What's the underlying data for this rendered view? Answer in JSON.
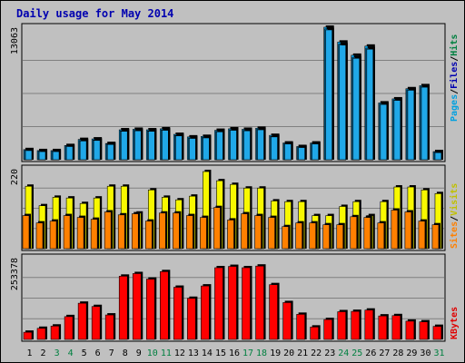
{
  "title": "Daily usage for May 2014",
  "colors": {
    "pages": "#20a8e8",
    "hits": "#00b0ff",
    "visits": "#f8f800",
    "sites": "#ff8000",
    "kbytes": "#ff0000",
    "title": "#0000b0",
    "label_pages": "#00a0e0",
    "label_files": "#0000b0",
    "label_hits": "#008040",
    "label_visits": "#c0c000",
    "label_sites": "#ff8000",
    "label_kbytes": "#e00000",
    "weekend_tick": "#008040"
  },
  "panels": {
    "hits": {
      "max_label": "13063",
      "label_parts": [
        "Pages",
        "Files",
        "Hits"
      ]
    },
    "visits": {
      "max_label": "220",
      "label_parts": [
        "Sites",
        "Visits"
      ]
    },
    "kbytes": {
      "max_label": "253378",
      "label_parts": [
        "KBytes"
      ]
    }
  },
  "chart_data": {
    "type": "bar",
    "title": "Daily usage for May 2014",
    "categories": [
      "1",
      "2",
      "3",
      "4",
      "5",
      "6",
      "7",
      "8",
      "9",
      "10",
      "11",
      "12",
      "13",
      "14",
      "15",
      "16",
      "17",
      "18",
      "19",
      "20",
      "21",
      "22",
      "23",
      "24",
      "25",
      "26",
      "27",
      "28",
      "29",
      "30",
      "31"
    ],
    "weekend_days": [
      "3",
      "4",
      "10",
      "11",
      "17",
      "18",
      "24",
      "25",
      "31"
    ],
    "series": [
      {
        "name": "Hits",
        "panel": "hits",
        "values": [
          1000,
          900,
          900,
          1400,
          2000,
          2050,
          1600,
          2950,
          3000,
          2950,
          3050,
          2500,
          2250,
          2300,
          2900,
          3050,
          3000,
          3100,
          2400,
          1650,
          1300,
          1650,
          13063,
          11600,
          10300,
          11200,
          5600,
          6000,
          7000,
          7300,
          800
        ]
      },
      {
        "name": "Files",
        "panel": "hits",
        "values": [
          950,
          850,
          850,
          1350,
          1900,
          1950,
          1550,
          2850,
          2900,
          2850,
          2950,
          2400,
          2150,
          2200,
          2800,
          2950,
          2900,
          3000,
          2300,
          1600,
          1250,
          1600,
          12900,
          11400,
          10100,
          11000,
          5500,
          5900,
          6900,
          7200,
          750
        ]
      },
      {
        "name": "Pages",
        "panel": "hits",
        "values": [
          900,
          800,
          800,
          1300,
          1850,
          1900,
          1500,
          2800,
          2850,
          2800,
          2900,
          2350,
          2100,
          2150,
          2750,
          2900,
          2850,
          2950,
          2250,
          1550,
          1200,
          1550,
          12800,
          11300,
          10000,
          10900,
          5450,
          5850,
          6850,
          7150,
          700
        ]
      },
      {
        "name": "Visits",
        "panel": "visits",
        "values": [
          170,
          117,
          140,
          138,
          123,
          138,
          170,
          170,
          97,
          160,
          140,
          133,
          143,
          210,
          185,
          175,
          165,
          165,
          130,
          128,
          128,
          90,
          90,
          115,
          128,
          90,
          128,
          168,
          168,
          160,
          150
        ]
      },
      {
        "name": "Sites",
        "panel": "visits",
        "values": [
          90,
          70,
          75,
          90,
          85,
          80,
          100,
          92,
          95,
          75,
          97,
          97,
          90,
          85,
          112,
          78,
          95,
          90,
          85,
          60,
          70,
          70,
          65,
          65,
          87,
          85,
          70,
          105,
          100,
          75,
          65
        ]
      },
      {
        "name": "KBytes",
        "panel": "kbytes",
        "values": [
          22000,
          34000,
          41000,
          70000,
          111000,
          101000,
          75000,
          194000,
          202000,
          185000,
          208000,
          160000,
          126000,
          164000,
          220000,
          224000,
          220000,
          225000,
          168000,
          113000,
          77000,
          38000,
          61000,
          85000,
          86000,
          90000,
          72000,
          73000,
          56000,
          54000,
          40000
        ]
      }
    ],
    "ylim_hits": [
      0,
      13063
    ],
    "ylim_visits": [
      0,
      220
    ],
    "ylim_kbytes": [
      0,
      253378
    ],
    "grid": true,
    "legend": "right-vertical"
  }
}
